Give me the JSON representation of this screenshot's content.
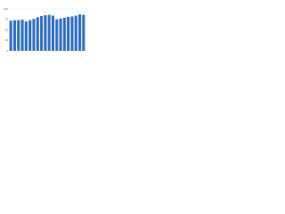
{
  "chart_data": {
    "type": "bar",
    "categories": [
      null,
      null,
      null,
      null,
      null,
      null,
      null,
      null,
      null,
      null,
      null,
      null,
      null,
      null,
      null,
      null,
      null,
      null,
      null,
      null
    ],
    "values": [
      72,
      73,
      73,
      74,
      70,
      73,
      76,
      80,
      83,
      85,
      86,
      84,
      75,
      77,
      79,
      81,
      82,
      84,
      87,
      86
    ],
    "color": "#2f6fc6",
    "ylim": [
      0,
      100
    ],
    "yticks": [
      0,
      25,
      50,
      75,
      100
    ],
    "grid": true
  }
}
